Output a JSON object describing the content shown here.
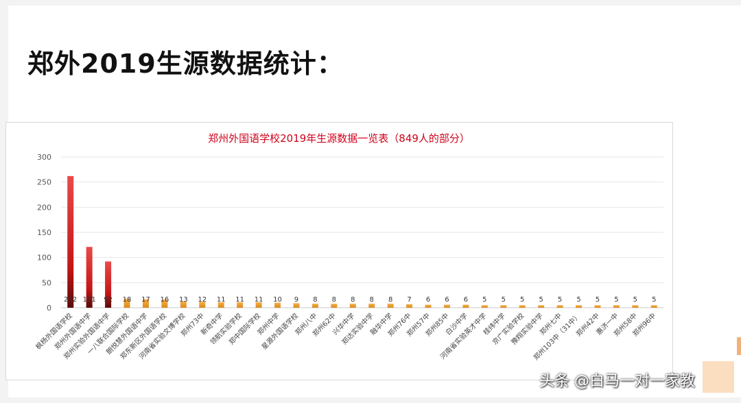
{
  "page": {
    "title": "郑外2019生源数据统计：",
    "watermark": "头条 @白马一对一家教"
  },
  "colors": {
    "title_red": "#d0021b",
    "bar_top_schools": "#d42020",
    "bar_other_schools": "#f0a030",
    "grid": "#e6e6e6"
  },
  "chart_data": {
    "type": "bar",
    "title": "郑州外国语学校2019年生源数据一览表（849人的部分）",
    "xlabel": "",
    "ylabel": "",
    "ylim": [
      0,
      300
    ],
    "yticks": [
      0,
      50,
      100,
      150,
      200,
      250,
      300
    ],
    "grid": true,
    "categories": [
      "枫杨外国语学校",
      "郑州外国语中学",
      "郑州实验外国语中学",
      "一八联合国际学校",
      "朗悦慧外国语中学",
      "郑东新区外国语学校",
      "河南省实验文博学校",
      "郑州73中",
      "新奇中学",
      "领航实验学校",
      "郑中国际学校",
      "郑州中学",
      "星源外国语学校",
      "郑州八中",
      "郑州62中",
      "兴华中学",
      "郑达实验中学",
      "融华中学",
      "郑州76中",
      "郑州57中",
      "郑州85中",
      "白沙中学",
      "河南省实验英才中学",
      "桂纬中学",
      "京广实验学校",
      "豫翔实验中学",
      "郑州七中",
      "郑州103中（31中）",
      "郑州42中",
      "惠济一中",
      "郑州58中",
      "郑州96中"
    ],
    "values": [
      262,
      121,
      92,
      18,
      17,
      16,
      13,
      12,
      11,
      11,
      11,
      10,
      9,
      8,
      8,
      8,
      8,
      8,
      7,
      6,
      6,
      6,
      5,
      5,
      5,
      5,
      5,
      5,
      5,
      5,
      5,
      5
    ],
    "data_labels": [
      "262",
      "121",
      "92",
      "18",
      "17",
      "16",
      "13",
      "12",
      "11",
      "11",
      "11",
      "10",
      "9",
      "8",
      "8",
      "8",
      "8",
      "8",
      "7",
      "6",
      "6",
      "6",
      "5",
      "5",
      "5",
      "5",
      "5",
      "5",
      "5",
      "5",
      "5",
      "5"
    ]
  }
}
